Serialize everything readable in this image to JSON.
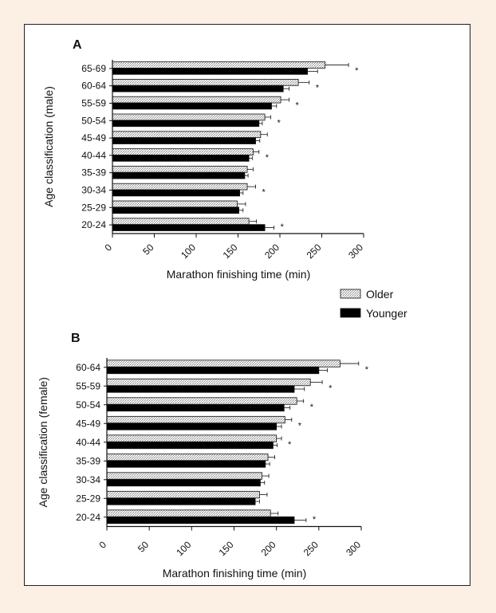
{
  "legend": [
    {
      "name": "Older",
      "pattern": "dotted"
    },
    {
      "name": "Younger",
      "pattern": "solid"
    }
  ],
  "colors": {
    "older_fill": "#e6e6e6",
    "younger_fill": "#000000",
    "background": "#fcefe4"
  },
  "chart_data": [
    {
      "type": "bar",
      "orientation": "horizontal",
      "panel_label": "A",
      "xlabel": "Marathon finishing time (min)",
      "ylabel": "Age classification (male)",
      "xlim": [
        0,
        300
      ],
      "xticks": [
        "0",
        "50",
        "100",
        "150",
        "200",
        "250",
        "300"
      ],
      "categories": [
        "65-69",
        "60-64",
        "55-59",
        "50-54",
        "45-49",
        "40-44",
        "35-39",
        "30-34",
        "25-29",
        "20-24"
      ],
      "series": [
        {
          "name": "Older",
          "values": [
            254,
            222,
            201,
            182,
            177,
            168,
            161,
            161,
            149,
            163
          ],
          "errors": [
            28,
            13,
            10,
            7,
            8,
            7,
            7,
            10,
            10,
            9
          ]
        },
        {
          "name": "Younger",
          "values": [
            233,
            204,
            190,
            175,
            171,
            163,
            158,
            152,
            151,
            182
          ],
          "errors": [
            12,
            7,
            6,
            4,
            5,
            4,
            4,
            4,
            5,
            11
          ]
        }
      ],
      "significant": [
        "65-69",
        "60-64",
        "55-59",
        "50-54",
        "40-44",
        "30-34",
        "20-24"
      ],
      "annotation": "*"
    },
    {
      "type": "bar",
      "orientation": "horizontal",
      "panel_label": "B",
      "xlabel": "Marathon finishing time (min)",
      "ylabel": "Age classification (female)",
      "xlim": [
        0,
        300
      ],
      "xticks": [
        "0",
        "50",
        "100",
        "150",
        "200",
        "250",
        "300"
      ],
      "categories": [
        "60-64",
        "55-59",
        "50-54",
        "45-49",
        "40-44",
        "35-39",
        "30-34",
        "25-29",
        "20-24"
      ],
      "series": [
        {
          "name": "Older",
          "values": [
            275,
            240,
            224,
            210,
            200,
            190,
            183,
            180,
            193
          ],
          "errors": [
            22,
            14,
            8,
            8,
            6,
            8,
            8,
            9,
            9
          ]
        },
        {
          "name": "Younger",
          "values": [
            250,
            221,
            209,
            200,
            196,
            187,
            181,
            175,
            221
          ],
          "errors": [
            10,
            12,
            7,
            6,
            5,
            5,
            5,
            5,
            14
          ]
        }
      ],
      "significant": [
        "60-64",
        "55-59",
        "50-54",
        "45-49",
        "40-44",
        "20-24"
      ],
      "annotation": "*"
    }
  ]
}
